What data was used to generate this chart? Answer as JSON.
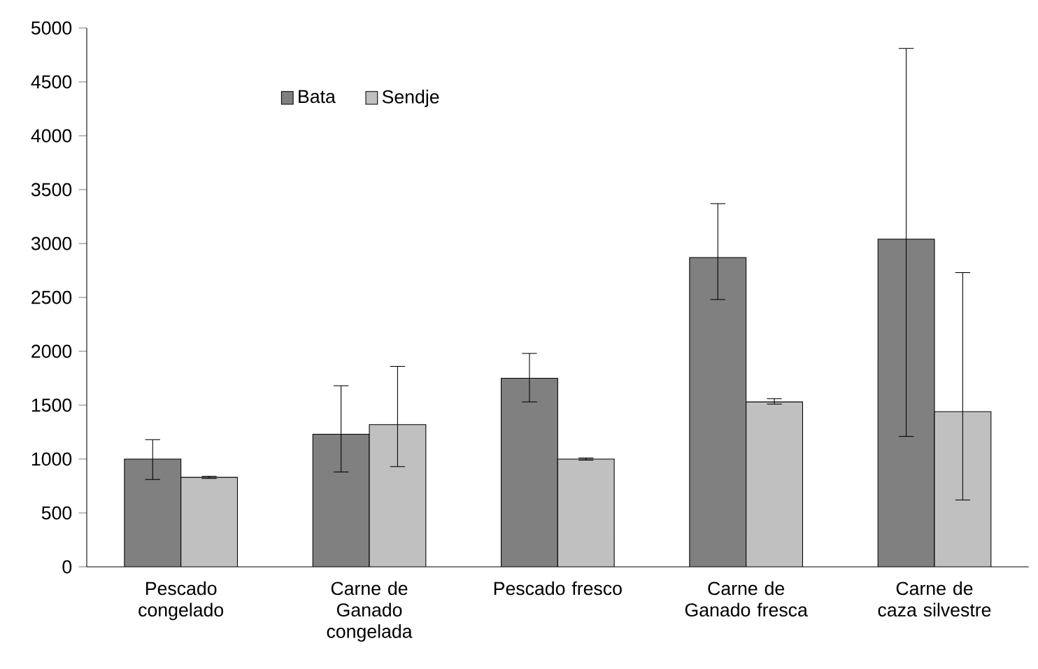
{
  "chart_data": {
    "type": "bar",
    "categories": [
      "Pescado congelado",
      "Carne de Ganado congelada",
      "Pescado fresco",
      "Carne de Ganado fresca",
      "Carne de caza silvestre"
    ],
    "series": [
      {
        "name": "Bata",
        "color": "#808080",
        "values": [
          1000,
          1230,
          1750,
          2870,
          3040
        ],
        "errors": [
          [
            810,
            1180
          ],
          [
            880,
            1680
          ],
          [
            1530,
            1980
          ],
          [
            2480,
            3370
          ],
          [
            1210,
            4810
          ]
        ]
      },
      {
        "name": "Sendje",
        "color": "#c0c0c0",
        "values": [
          830,
          1320,
          1000,
          1530,
          1440
        ],
        "errors": [
          [
            820,
            840
          ],
          [
            930,
            1860
          ],
          [
            990,
            1010
          ],
          [
            1510,
            1560
          ],
          [
            620,
            2730
          ]
        ]
      }
    ],
    "ylim": [
      0,
      5000
    ],
    "yticks": [
      0,
      500,
      1000,
      1500,
      2000,
      2500,
      3000,
      3500,
      4000,
      4500,
      5000
    ],
    "legend": "top left",
    "grid": false
  }
}
